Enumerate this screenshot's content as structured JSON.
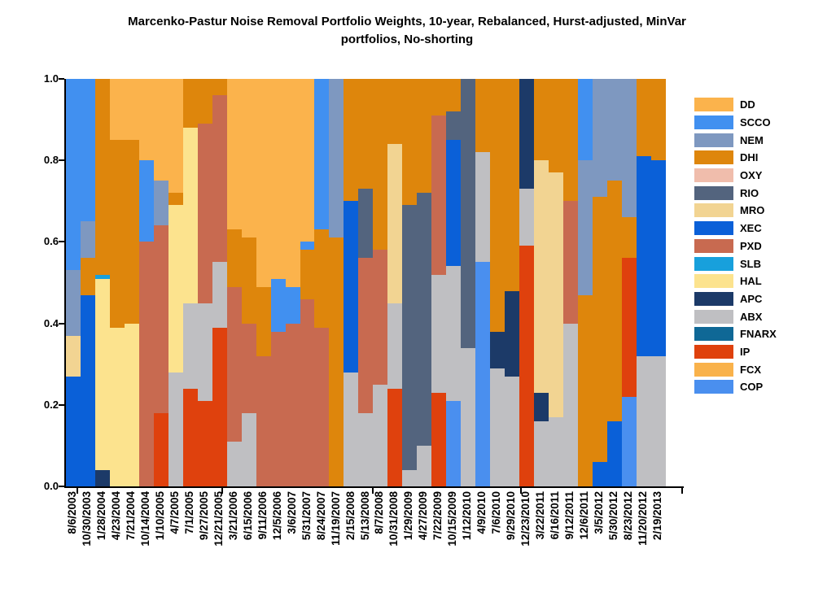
{
  "title": {
    "line1": "Marcenko-Pastur Noise Removal Portfolio Weights, 10-year, Rebalanced, Hurst-adjusted, MinVar",
    "line2": "portfolios, No-shorting"
  },
  "y_axis": {
    "tick_labels": [
      "1.0",
      "0.8",
      "0.6",
      "0.4",
      "0.2",
      "0.0"
    ]
  },
  "legend": {
    "position": "right",
    "items": [
      {
        "label": "DD",
        "color": "#FBB34C"
      },
      {
        "label": "SCCO",
        "color": "#4190F0"
      },
      {
        "label": "NEM",
        "color": "#7E98C0"
      },
      {
        "label": "DHI",
        "color": "#DE860C"
      },
      {
        "label": "OXY",
        "color": "#F0BDAC"
      },
      {
        "label": "RIO",
        "color": "#53647E"
      },
      {
        "label": "MRO",
        "color": "#F2D492"
      },
      {
        "label": "XEC",
        "color": "#0A60D8"
      },
      {
        "label": "PXD",
        "color": "#C86A50"
      },
      {
        "label": "SLB",
        "color": "#18A0DC"
      },
      {
        "label": "HAL",
        "color": "#FCE38E"
      },
      {
        "label": "APC",
        "color": "#1C3A68"
      },
      {
        "label": "ABX",
        "color": "#BFBFC2"
      },
      {
        "label": "FNARX",
        "color": "#0F6896"
      },
      {
        "label": "IP",
        "color": "#DF410D"
      },
      {
        "label": "FCX",
        "color": "#F9B24B"
      },
      {
        "label": "COP",
        "color": "#4A8FEF"
      }
    ]
  },
  "chart_data": {
    "type": "bar",
    "subtype": "stacked-100percent",
    "title": "Marcenko-Pastur Noise Removal Portfolio Weights, 10-year, Rebalanced, Hurst-adjusted, MinVar portfolios, No-shorting",
    "xlabel": "",
    "ylabel": "",
    "ylim": [
      0.0,
      1.0
    ],
    "yticks": [
      1.0,
      0.8,
      0.6,
      0.4,
      0.2,
      0.0
    ],
    "grid": false,
    "legend_position": "right",
    "legend_series_order": [
      "DD",
      "SCCO",
      "NEM",
      "DHI",
      "OXY",
      "RIO",
      "MRO",
      "XEC",
      "PXD",
      "SLB",
      "HAL",
      "APC",
      "ABX",
      "FNARX",
      "IP",
      "FCX",
      "COP"
    ],
    "segment_order": "top-to-bottom",
    "categories": [
      "8/6/2003",
      "10/30/2003",
      "1/28/2004",
      "4/23/2004",
      "7/21/2004",
      "10/14/2004",
      "1/10/2005",
      "4/7/2005",
      "7/1/2005",
      "9/27/2005",
      "12/21/2005",
      "3/21/2006",
      "6/15/2006",
      "9/11/2006",
      "12/5/2006",
      "3/6/2007",
      "5/31/2007",
      "8/24/2007",
      "11/19/2007",
      "2/15/2008",
      "5/13/2008",
      "8/7/2008",
      "10/31/2008",
      "1/29/2009",
      "4/27/2009",
      "7/22/2009",
      "10/15/2009",
      "1/12/2010",
      "4/9/2010",
      "7/6/2010",
      "9/29/2010",
      "12/23/2010",
      "3/22/2011",
      "6/16/2011",
      "9/12/2011",
      "12/6/2011",
      "3/5/2012",
      "5/30/2012",
      "8/23/2012",
      "11/20/2012",
      "2/19/2013"
    ],
    "bars": [
      {
        "date": "8/6/2003",
        "segments": [
          [
            "SCCO",
            0.47
          ],
          [
            "NEM",
            0.16
          ],
          [
            "MRO",
            0.1
          ],
          [
            "XEC",
            0.27
          ]
        ]
      },
      {
        "date": "10/30/2003",
        "segments": [
          [
            "SCCO",
            0.35
          ],
          [
            "NEM",
            0.09
          ],
          [
            "DHI",
            0.09
          ],
          [
            "XEC",
            0.47
          ]
        ]
      },
      {
        "date": "1/28/2004",
        "segments": [
          [
            "DHI",
            0.48
          ],
          [
            "SLB",
            0.01
          ],
          [
            "HAL",
            0.47
          ],
          [
            "APC",
            0.04
          ]
        ]
      },
      {
        "date": "4/23/2004",
        "segments": [
          [
            "DD",
            0.15
          ],
          [
            "DHI",
            0.46
          ],
          [
            "HAL",
            0.39
          ]
        ]
      },
      {
        "date": "7/21/2004",
        "segments": [
          [
            "DD",
            0.15
          ],
          [
            "DHI",
            0.45
          ],
          [
            "HAL",
            0.4
          ]
        ]
      },
      {
        "date": "10/14/2004",
        "segments": [
          [
            "DD",
            0.2
          ],
          [
            "SCCO",
            0.2
          ],
          [
            "PXD",
            0.6
          ]
        ]
      },
      {
        "date": "1/10/2005",
        "segments": [
          [
            "DD",
            0.25
          ],
          [
            "NEM",
            0.11
          ],
          [
            "PXD",
            0.46
          ],
          [
            "IP",
            0.18
          ]
        ]
      },
      {
        "date": "4/7/2005",
        "segments": [
          [
            "DD",
            0.28
          ],
          [
            "DHI",
            0.03
          ],
          [
            "HAL",
            0.41
          ],
          [
            "ABX",
            0.28
          ]
        ]
      },
      {
        "date": "7/1/2005",
        "segments": [
          [
            "DHI",
            0.12
          ],
          [
            "HAL",
            0.43
          ],
          [
            "ABX",
            0.21
          ],
          [
            "IP",
            0.24
          ]
        ]
      },
      {
        "date": "9/27/2005",
        "segments": [
          [
            "DHI",
            0.11
          ],
          [
            "PXD",
            0.44
          ],
          [
            "ABX",
            0.24
          ],
          [
            "IP",
            0.21
          ]
        ]
      },
      {
        "date": "12/21/2005",
        "segments": [
          [
            "DHI",
            0.04
          ],
          [
            "PXD",
            0.41
          ],
          [
            "ABX",
            0.16
          ],
          [
            "IP",
            0.39
          ]
        ]
      },
      {
        "date": "3/21/2006",
        "segments": [
          [
            "DD",
            0.37
          ],
          [
            "DHI",
            0.14
          ],
          [
            "PXD",
            0.38
          ],
          [
            "ABX",
            0.11
          ]
        ]
      },
      {
        "date": "6/15/2006",
        "segments": [
          [
            "DD",
            0.39
          ],
          [
            "DHI",
            0.21
          ],
          [
            "PXD",
            0.22
          ],
          [
            "ABX",
            0.18
          ]
        ]
      },
      {
        "date": "9/11/2006",
        "segments": [
          [
            "DD",
            0.51
          ],
          [
            "DHI",
            0.17
          ],
          [
            "PXD",
            0.32
          ]
        ]
      },
      {
        "date": "12/5/2006",
        "segments": [
          [
            "DD",
            0.49
          ],
          [
            "SCCO",
            0.13
          ],
          [
            "PXD",
            0.38
          ]
        ]
      },
      {
        "date": "3/6/2007",
        "segments": [
          [
            "DD",
            0.51
          ],
          [
            "SCCO",
            0.09
          ],
          [
            "PXD",
            0.4
          ]
        ]
      },
      {
        "date": "5/31/2007",
        "segments": [
          [
            "DD",
            0.4
          ],
          [
            "SCCO",
            0.02
          ],
          [
            "DHI",
            0.12
          ],
          [
            "PXD",
            0.46
          ]
        ]
      },
      {
        "date": "8/24/2007",
        "segments": [
          [
            "SCCO",
            0.37
          ],
          [
            "DHI",
            0.24
          ],
          [
            "PXD",
            0.39
          ]
        ]
      },
      {
        "date": "11/19/2007",
        "segments": [
          [
            "NEM",
            0.39
          ],
          [
            "DHI",
            0.61
          ]
        ]
      },
      {
        "date": "2/15/2008",
        "segments": [
          [
            "DHI",
            0.3
          ],
          [
            "XEC",
            0.42
          ],
          [
            "ABX",
            0.28
          ]
        ]
      },
      {
        "date": "5/13/2008",
        "segments": [
          [
            "DHI",
            0.27
          ],
          [
            "RIO",
            0.17
          ],
          [
            "PXD",
            0.38
          ],
          [
            "ABX",
            0.18
          ]
        ]
      },
      {
        "date": "8/7/2008",
        "segments": [
          [
            "DHI",
            0.42
          ],
          [
            "PXD",
            0.33
          ],
          [
            "ABX",
            0.25
          ]
        ]
      },
      {
        "date": "10/31/2008",
        "segments": [
          [
            "DHI",
            0.16
          ],
          [
            "MRO",
            0.39
          ],
          [
            "ABX",
            0.21
          ],
          [
            "IP",
            0.24
          ]
        ]
      },
      {
        "date": "1/29/2009",
        "segments": [
          [
            "DHI",
            0.31
          ],
          [
            "RIO",
            0.65
          ],
          [
            "ABX",
            0.04
          ]
        ]
      },
      {
        "date": "4/27/2009",
        "segments": [
          [
            "DHI",
            0.28
          ],
          [
            "RIO",
            0.62
          ],
          [
            "ABX",
            0.1
          ]
        ]
      },
      {
        "date": "7/22/2009",
        "segments": [
          [
            "DHI",
            0.09
          ],
          [
            "PXD",
            0.39
          ],
          [
            "ABX",
            0.29
          ],
          [
            "IP",
            0.23
          ]
        ]
      },
      {
        "date": "10/15/2009",
        "segments": [
          [
            "DHI",
            0.08
          ],
          [
            "RIO",
            0.07
          ],
          [
            "XEC",
            0.31
          ],
          [
            "ABX",
            0.33
          ],
          [
            "COP",
            0.21
          ]
        ]
      },
      {
        "date": "1/12/2010",
        "segments": [
          [
            "RIO",
            0.66
          ],
          [
            "ABX",
            0.34
          ]
        ]
      },
      {
        "date": "4/9/2010",
        "segments": [
          [
            "DHI",
            0.18
          ],
          [
            "ABX",
            0.27
          ],
          [
            "COP",
            0.55
          ]
        ]
      },
      {
        "date": "7/6/2010",
        "segments": [
          [
            "DHI",
            0.62
          ],
          [
            "APC",
            0.09
          ],
          [
            "ABX",
            0.29
          ]
        ]
      },
      {
        "date": "9/29/2010",
        "segments": [
          [
            "DHI",
            0.52
          ],
          [
            "APC",
            0.21
          ],
          [
            "ABX",
            0.27
          ]
        ]
      },
      {
        "date": "12/23/2010",
        "segments": [
          [
            "APC",
            0.27
          ],
          [
            "ABX",
            0.14
          ],
          [
            "IP",
            0.59
          ]
        ]
      },
      {
        "date": "3/22/2011",
        "segments": [
          [
            "DHI",
            0.2
          ],
          [
            "MRO",
            0.57
          ],
          [
            "APC",
            0.07
          ],
          [
            "ABX",
            0.16
          ]
        ]
      },
      {
        "date": "6/16/2011",
        "segments": [
          [
            "DHI",
            0.23
          ],
          [
            "MRO",
            0.6
          ],
          [
            "ABX",
            0.17
          ]
        ]
      },
      {
        "date": "9/12/2011",
        "segments": [
          [
            "DHI",
            0.3
          ],
          [
            "PXD",
            0.3
          ],
          [
            "ABX",
            0.4
          ]
        ]
      },
      {
        "date": "12/6/2011",
        "segments": [
          [
            "SCCO",
            0.2
          ],
          [
            "NEM",
            0.33
          ],
          [
            "DHI",
            0.47
          ]
        ]
      },
      {
        "date": "3/5/2012",
        "segments": [
          [
            "NEM",
            0.29
          ],
          [
            "DHI",
            0.65
          ],
          [
            "XEC",
            0.06
          ]
        ]
      },
      {
        "date": "5/30/2012",
        "segments": [
          [
            "NEM",
            0.25
          ],
          [
            "DHI",
            0.59
          ],
          [
            "XEC",
            0.16
          ]
        ]
      },
      {
        "date": "8/23/2012",
        "segments": [
          [
            "NEM",
            0.34
          ],
          [
            "DHI",
            0.1
          ],
          [
            "IP",
            0.34
          ],
          [
            "COP",
            0.22
          ]
        ]
      },
      {
        "date": "11/20/2012",
        "segments": [
          [
            "DHI",
            0.19
          ],
          [
            "XEC",
            0.49
          ],
          [
            "ABX",
            0.32
          ]
        ]
      },
      {
        "date": "2/19/2013",
        "segments": [
          [
            "DHI",
            0.2
          ],
          [
            "XEC",
            0.48
          ],
          [
            "ABX",
            0.32
          ]
        ]
      }
    ]
  }
}
